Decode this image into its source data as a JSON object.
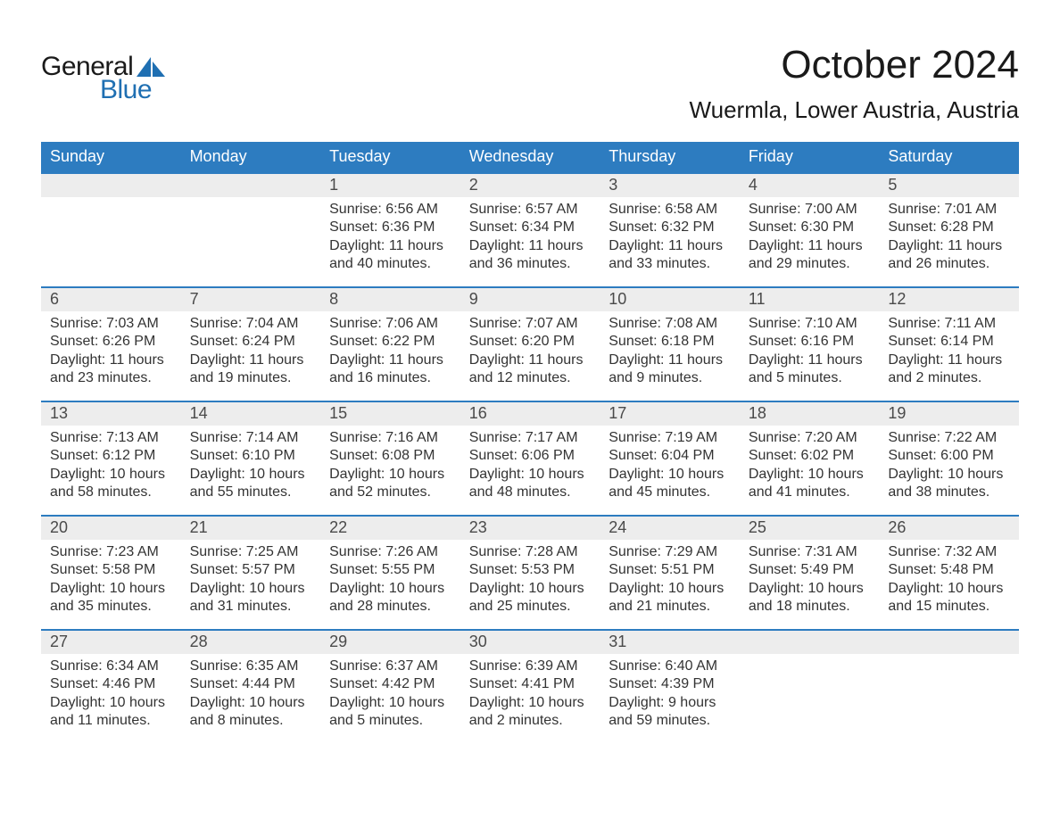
{
  "logo": {
    "word1": "General",
    "word2": "Blue",
    "text_color": "#1a1a1a",
    "accent_color": "#1f6fb2"
  },
  "title": "October 2024",
  "location": "Wuermla, Lower Austria, Austria",
  "calendar": {
    "header_bg": "#2d7cc0",
    "header_text_color": "#ffffff",
    "daynum_bg": "#ededed",
    "row_border_color": "#2d7cc0",
    "body_text_color": "#333333",
    "days_of_week": [
      "Sunday",
      "Monday",
      "Tuesday",
      "Wednesday",
      "Thursday",
      "Friday",
      "Saturday"
    ],
    "weeks": [
      [
        null,
        null,
        {
          "n": "1",
          "sunrise": "6:56 AM",
          "sunset": "6:36 PM",
          "daylight": "11 hours and 40 minutes."
        },
        {
          "n": "2",
          "sunrise": "6:57 AM",
          "sunset": "6:34 PM",
          "daylight": "11 hours and 36 minutes."
        },
        {
          "n": "3",
          "sunrise": "6:58 AM",
          "sunset": "6:32 PM",
          "daylight": "11 hours and 33 minutes."
        },
        {
          "n": "4",
          "sunrise": "7:00 AM",
          "sunset": "6:30 PM",
          "daylight": "11 hours and 29 minutes."
        },
        {
          "n": "5",
          "sunrise": "7:01 AM",
          "sunset": "6:28 PM",
          "daylight": "11 hours and 26 minutes."
        }
      ],
      [
        {
          "n": "6",
          "sunrise": "7:03 AM",
          "sunset": "6:26 PM",
          "daylight": "11 hours and 23 minutes."
        },
        {
          "n": "7",
          "sunrise": "7:04 AM",
          "sunset": "6:24 PM",
          "daylight": "11 hours and 19 minutes."
        },
        {
          "n": "8",
          "sunrise": "7:06 AM",
          "sunset": "6:22 PM",
          "daylight": "11 hours and 16 minutes."
        },
        {
          "n": "9",
          "sunrise": "7:07 AM",
          "sunset": "6:20 PM",
          "daylight": "11 hours and 12 minutes."
        },
        {
          "n": "10",
          "sunrise": "7:08 AM",
          "sunset": "6:18 PM",
          "daylight": "11 hours and 9 minutes."
        },
        {
          "n": "11",
          "sunrise": "7:10 AM",
          "sunset": "6:16 PM",
          "daylight": "11 hours and 5 minutes."
        },
        {
          "n": "12",
          "sunrise": "7:11 AM",
          "sunset": "6:14 PM",
          "daylight": "11 hours and 2 minutes."
        }
      ],
      [
        {
          "n": "13",
          "sunrise": "7:13 AM",
          "sunset": "6:12 PM",
          "daylight": "10 hours and 58 minutes."
        },
        {
          "n": "14",
          "sunrise": "7:14 AM",
          "sunset": "6:10 PM",
          "daylight": "10 hours and 55 minutes."
        },
        {
          "n": "15",
          "sunrise": "7:16 AM",
          "sunset": "6:08 PM",
          "daylight": "10 hours and 52 minutes."
        },
        {
          "n": "16",
          "sunrise": "7:17 AM",
          "sunset": "6:06 PM",
          "daylight": "10 hours and 48 minutes."
        },
        {
          "n": "17",
          "sunrise": "7:19 AM",
          "sunset": "6:04 PM",
          "daylight": "10 hours and 45 minutes."
        },
        {
          "n": "18",
          "sunrise": "7:20 AM",
          "sunset": "6:02 PM",
          "daylight": "10 hours and 41 minutes."
        },
        {
          "n": "19",
          "sunrise": "7:22 AM",
          "sunset": "6:00 PM",
          "daylight": "10 hours and 38 minutes."
        }
      ],
      [
        {
          "n": "20",
          "sunrise": "7:23 AM",
          "sunset": "5:58 PM",
          "daylight": "10 hours and 35 minutes."
        },
        {
          "n": "21",
          "sunrise": "7:25 AM",
          "sunset": "5:57 PM",
          "daylight": "10 hours and 31 minutes."
        },
        {
          "n": "22",
          "sunrise": "7:26 AM",
          "sunset": "5:55 PM",
          "daylight": "10 hours and 28 minutes."
        },
        {
          "n": "23",
          "sunrise": "7:28 AM",
          "sunset": "5:53 PM",
          "daylight": "10 hours and 25 minutes."
        },
        {
          "n": "24",
          "sunrise": "7:29 AM",
          "sunset": "5:51 PM",
          "daylight": "10 hours and 21 minutes."
        },
        {
          "n": "25",
          "sunrise": "7:31 AM",
          "sunset": "5:49 PM",
          "daylight": "10 hours and 18 minutes."
        },
        {
          "n": "26",
          "sunrise": "7:32 AM",
          "sunset": "5:48 PM",
          "daylight": "10 hours and 15 minutes."
        }
      ],
      [
        {
          "n": "27",
          "sunrise": "6:34 AM",
          "sunset": "4:46 PM",
          "daylight": "10 hours and 11 minutes."
        },
        {
          "n": "28",
          "sunrise": "6:35 AM",
          "sunset": "4:44 PM",
          "daylight": "10 hours and 8 minutes."
        },
        {
          "n": "29",
          "sunrise": "6:37 AM",
          "sunset": "4:42 PM",
          "daylight": "10 hours and 5 minutes."
        },
        {
          "n": "30",
          "sunrise": "6:39 AM",
          "sunset": "4:41 PM",
          "daylight": "10 hours and 2 minutes."
        },
        {
          "n": "31",
          "sunrise": "6:40 AM",
          "sunset": "4:39 PM",
          "daylight": "9 hours and 59 minutes."
        },
        null,
        null
      ]
    ],
    "labels": {
      "sunrise": "Sunrise:",
      "sunset": "Sunset:",
      "daylight": "Daylight:"
    }
  }
}
